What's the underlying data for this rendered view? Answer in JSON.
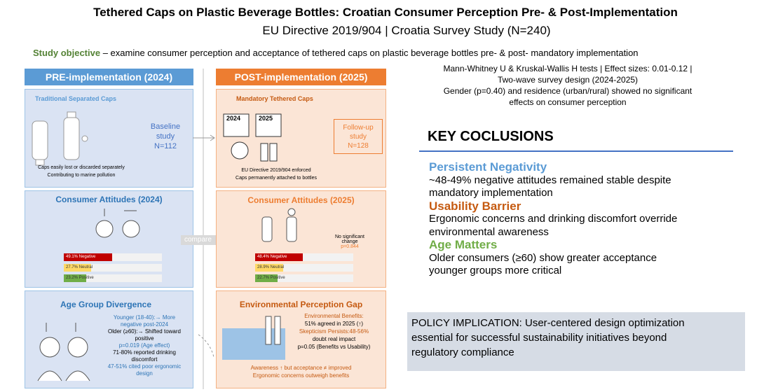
{
  "header": {
    "title": "Tethered Caps on Plastic Beverage Bottles: Croatian Consumer Perception Pre- & Post-Implementation",
    "subtitle": "EU Directive 2019/904 | Croatia Survey Study (N=240)",
    "objective_label": "Study objective",
    "objective_text": "– examine consumer perception and acceptance of tethered caps on plastic beverage bottles pre- & post- mandatory implementation"
  },
  "pre": {
    "header": "PRE-implementation (2024)",
    "caps": {
      "title": "Traditional Separated Caps",
      "lines": [
        "Caps easily lost or discarded separately",
        "Contributing to marine pollution"
      ],
      "study": [
        "Baseline",
        "study",
        "N=112"
      ]
    },
    "attitudes": {
      "title": "Consumer Attitudes (2024)",
      "bars": [
        {
          "value": 49.1,
          "label": "49.1% Negative"
        },
        {
          "value": 27.7,
          "label": "27.7% Neutral"
        },
        {
          "value": 23.2,
          "label": "23.2% Positive"
        }
      ]
    },
    "age": {
      "title": "Age Group Divergence",
      "lines": [
        "Younger (18-40):→ More",
        "negative post-2024",
        "Older (≥60):→ Shifted toward",
        "positive",
        "p=0.019 (Age effect)",
        "71-80% reported drinking",
        "discomfort",
        "47-51% cited poor ergonomic",
        "design"
      ]
    }
  },
  "compare": "compare",
  "post": {
    "header": "POST-implementation (2025)",
    "caps": {
      "title": "Mandatory Tethered Caps",
      "years": [
        "2024",
        "2025"
      ],
      "lines": [
        "EU Directive 2019/904 enforced",
        "Caps permanently attached to bottles"
      ],
      "study": [
        "Follow-up",
        "study",
        "N=128"
      ]
    },
    "attitudes": {
      "title": "Consumer Attitudes (2025)",
      "bars": [
        {
          "value": 48.4,
          "label": "48.4% Negative"
        },
        {
          "value": 28.9,
          "label": "28.9% Neutral"
        },
        {
          "value": 22.7,
          "label": "22.7% Positive"
        }
      ],
      "note": [
        "No significant",
        "change"
      ],
      "p": "p=0.844"
    },
    "environment": {
      "title": "Environmental Perception Gap",
      "lines": [
        "Environmental Benefits:",
        "51% agreed in 2025 (↑)",
        "Skepticism Persists:48-56%",
        "doubt real impact",
        "p=0.05 (Benefits vs Usability)"
      ],
      "footer": [
        "Awareness ↑ but acceptance ≠ improved",
        "Ergonomic concerns outweigh benefits"
      ]
    }
  },
  "methods": [
    "Mann-Whitney U & Kruskal-Wallis H tests | Effect sizes: 0.01-0.12 |",
    "Two-wave survey design (2024-2025)",
    "Gender (p=0.40) and residence (urban/rural) showed no significant",
    "effects on consumer perception"
  ],
  "conclusions": {
    "title": "KEY COCLUSIONS",
    "items": [
      {
        "heading": "Persistent Negativity",
        "lines": [
          "~48-49% negative attitudes remained stable despite",
          "mandatory implementation"
        ]
      },
      {
        "heading": "Usability Barrier",
        "lines": [
          "Ergonomic concerns and drinking discomfort override",
          "environmental awareness"
        ]
      },
      {
        "heading": "Age Matters",
        "lines": [
          "Older consumers (≥60) show greater acceptance",
          "younger groups more critical"
        ]
      }
    ]
  },
  "policy": [
    "POLICY IMPLICATION: User-centered design optimization",
    "essential for successful sustainability initiatives beyond",
    "regulatory compliance"
  ]
}
